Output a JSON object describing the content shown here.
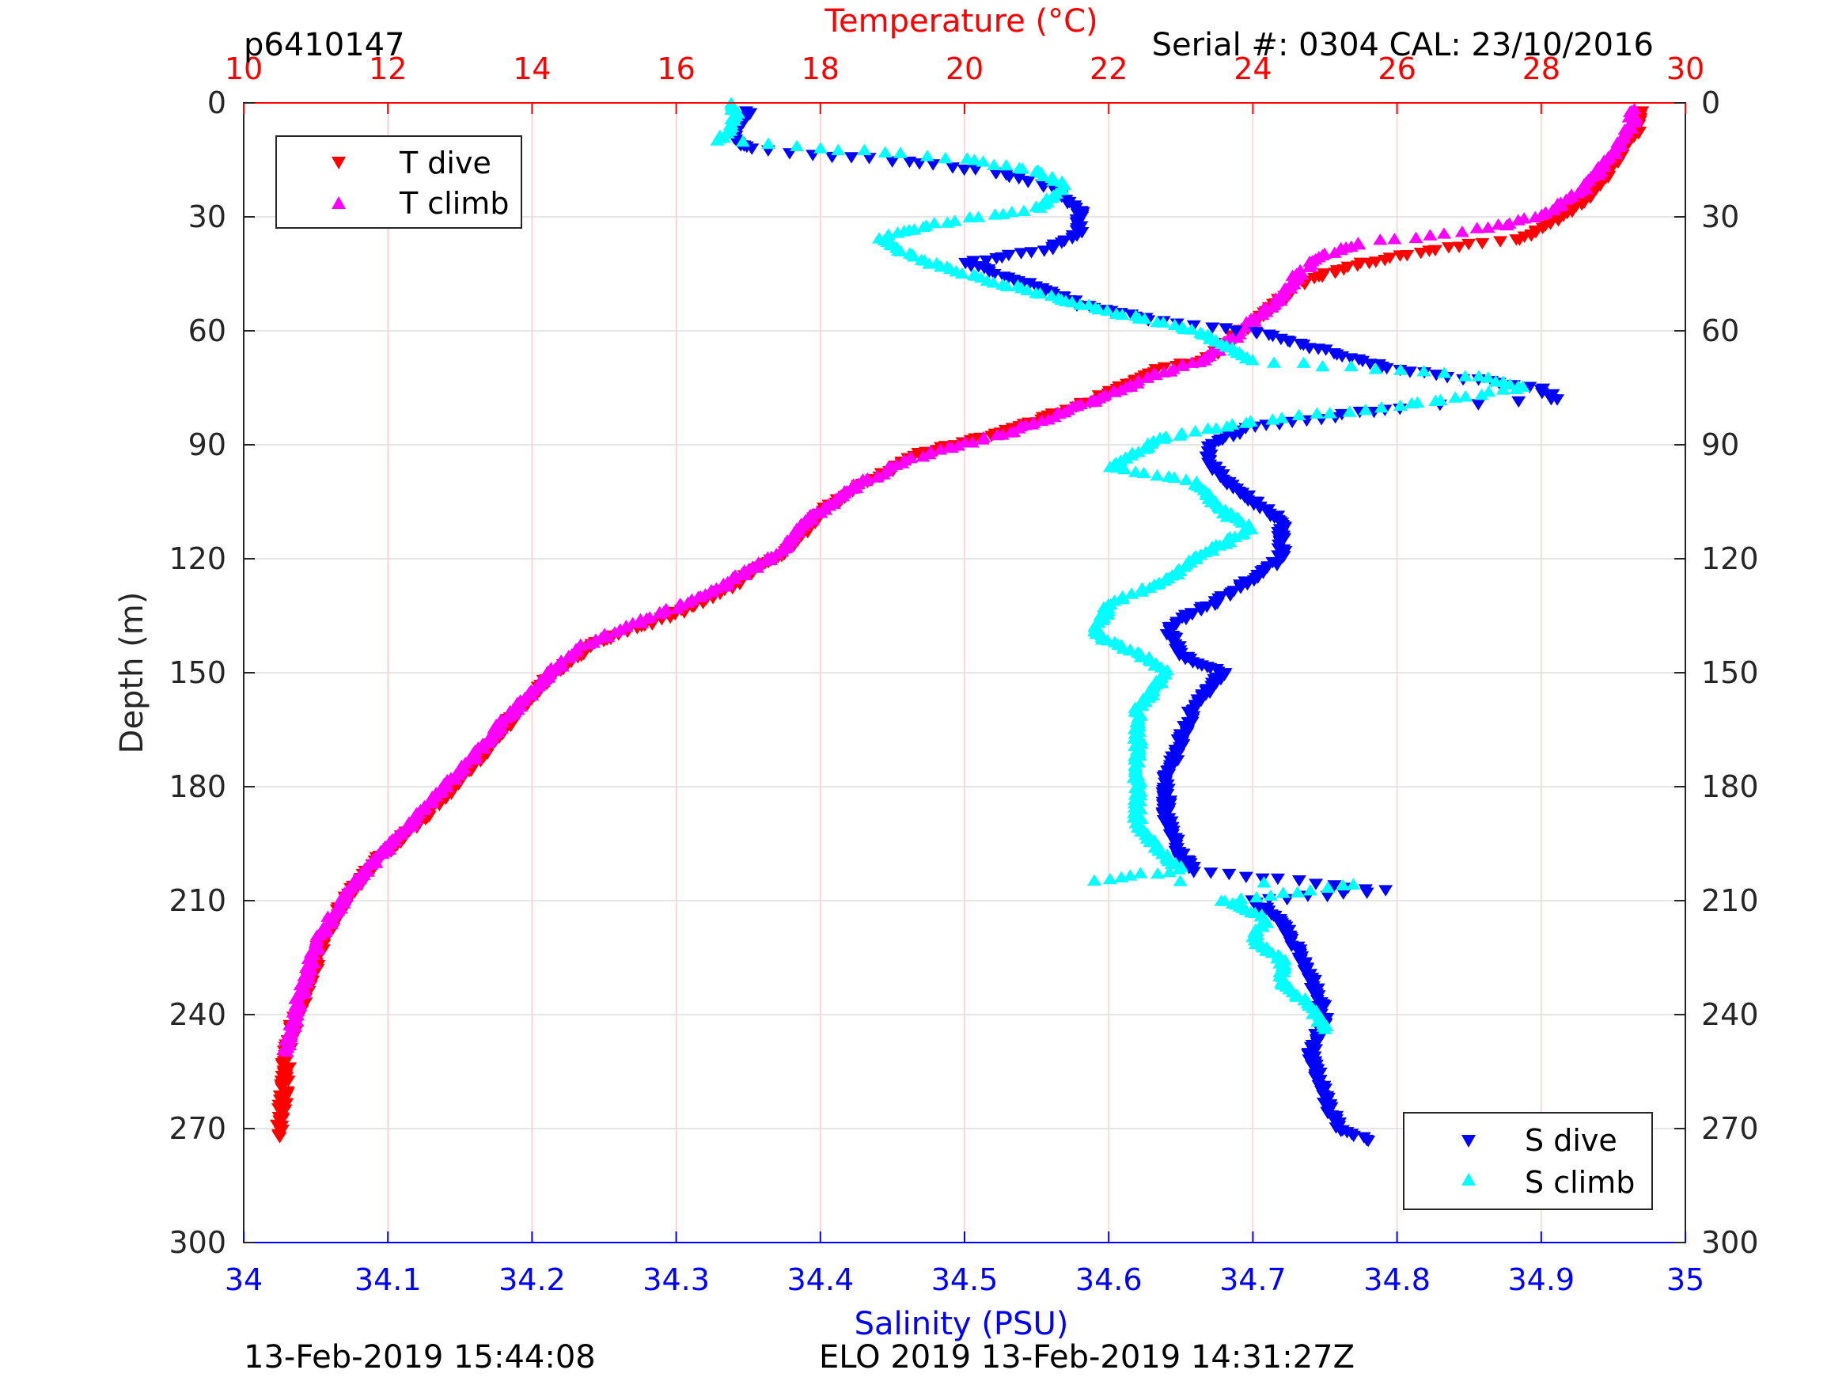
{
  "chart_data": {
    "type": "scatter",
    "header": {
      "profile_id": "p6410147",
      "serial": "Serial #: 0304  CAL: 23/10/2016"
    },
    "footer": {
      "left": "13-Feb-2019 15:44:08",
      "center": "ELO 2019 13-Feb-2019 14:31:27Z"
    },
    "ylabel": "Depth (m)",
    "ylim": [
      0,
      300
    ],
    "y_reversed": true,
    "yticks": [
      "0",
      "30",
      "60",
      "90",
      "120",
      "150",
      "180",
      "210",
      "240",
      "270",
      "300"
    ],
    "top_axis": {
      "label": "Temperature (°C)",
      "range": [
        10,
        30
      ],
      "ticks": [
        "10",
        "12",
        "14",
        "16",
        "18",
        "20",
        "22",
        "24",
        "26",
        "28",
        "30"
      ],
      "color": "#ff0000"
    },
    "bottom_axis": {
      "label": "Salinity (PSU)",
      "range": [
        34,
        35
      ],
      "ticks": [
        "34",
        "34.1",
        "34.2",
        "34.3",
        "34.4",
        "34.5",
        "34.6",
        "34.7",
        "34.8",
        "34.9",
        "35"
      ],
      "color": "#0000ff"
    },
    "grid": {
      "vertical": true,
      "horizontal": true,
      "vertical_color": "#ffcccc",
      "horizontal_color": "#dddddd"
    },
    "legends": {
      "temperature": {
        "position": "top-left",
        "entries": [
          "T dive",
          "T climb"
        ]
      },
      "salinity": {
        "position": "bottom-right",
        "entries": [
          "S dive",
          "S climb"
        ]
      }
    },
    "series": [
      {
        "name": "T dive",
        "axis": "temperature",
        "marker": "triangle-down",
        "color": "#ff0000",
        "points": [
          [
            29.4,
            2
          ],
          [
            29.3,
            8
          ],
          [
            29.0,
            16
          ],
          [
            28.7,
            24
          ],
          [
            28.3,
            30
          ],
          [
            27.7,
            36
          ],
          [
            27.0,
            37
          ],
          [
            26.0,
            40
          ],
          [
            25.3,
            43
          ],
          [
            24.7,
            47
          ],
          [
            24.3,
            53
          ],
          [
            24.0,
            58
          ],
          [
            23.7,
            62
          ],
          [
            23.4,
            67
          ],
          [
            22.7,
            70
          ],
          [
            21.8,
            78
          ],
          [
            20.8,
            85
          ],
          [
            19.4,
            92
          ],
          [
            18.6,
            100
          ],
          [
            18.0,
            108
          ],
          [
            17.5,
            118
          ],
          [
            16.7,
            128
          ],
          [
            15.9,
            135
          ],
          [
            14.9,
            142
          ],
          [
            14.3,
            150
          ],
          [
            13.8,
            160
          ],
          [
            13.4,
            170
          ],
          [
            12.9,
            180
          ],
          [
            12.4,
            190
          ],
          [
            11.8,
            200
          ],
          [
            11.4,
            210
          ],
          [
            11.1,
            220
          ],
          [
            10.9,
            232
          ],
          [
            10.7,
            242
          ],
          [
            10.6,
            250
          ],
          [
            10.55,
            262
          ],
          [
            10.5,
            270
          ],
          [
            10.5,
            272
          ]
        ]
      },
      {
        "name": "T climb",
        "axis": "temperature",
        "marker": "triangle-up",
        "color": "#ff00ff",
        "points": [
          [
            29.3,
            2
          ],
          [
            29.2,
            8
          ],
          [
            28.9,
            16
          ],
          [
            28.5,
            24
          ],
          [
            28.0,
            30
          ],
          [
            27.3,
            33
          ],
          [
            26.5,
            35
          ],
          [
            25.5,
            37
          ],
          [
            24.9,
            41
          ],
          [
            24.6,
            46
          ],
          [
            24.3,
            53
          ],
          [
            23.9,
            59
          ],
          [
            23.6,
            64
          ],
          [
            23.3,
            68
          ],
          [
            22.6,
            72
          ],
          [
            21.6,
            80
          ],
          [
            20.6,
            87
          ],
          [
            19.2,
            94
          ],
          [
            18.5,
            101
          ],
          [
            17.9,
            109
          ],
          [
            17.4,
            119
          ],
          [
            16.5,
            129
          ],
          [
            15.6,
            136
          ],
          [
            14.7,
            143
          ],
          [
            14.2,
            151
          ],
          [
            13.7,
            161
          ],
          [
            13.2,
            172
          ],
          [
            12.7,
            182
          ],
          [
            12.2,
            192
          ],
          [
            11.7,
            202
          ],
          [
            11.3,
            212
          ],
          [
            11.0,
            222
          ],
          [
            10.8,
            234
          ],
          [
            10.65,
            245
          ],
          [
            10.6,
            250
          ]
        ]
      },
      {
        "name": "S dive",
        "axis": "salinity",
        "marker": "triangle-down",
        "color": "#0000ff",
        "points": [
          [
            34.35,
            2
          ],
          [
            34.34,
            8
          ],
          [
            34.35,
            12
          ],
          [
            34.45,
            15
          ],
          [
            34.52,
            18
          ],
          [
            34.56,
            22
          ],
          [
            34.58,
            28
          ],
          [
            34.58,
            34
          ],
          [
            34.56,
            38
          ],
          [
            34.5,
            42
          ],
          [
            34.55,
            48
          ],
          [
            34.58,
            53
          ],
          [
            34.63,
            57
          ],
          [
            34.7,
            60
          ],
          [
            34.75,
            65
          ],
          [
            34.8,
            70
          ],
          [
            34.9,
            75
          ],
          [
            34.91,
            78
          ],
          [
            34.8,
            80
          ],
          [
            34.7,
            85
          ],
          [
            34.67,
            90
          ],
          [
            34.67,
            95
          ],
          [
            34.69,
            102
          ],
          [
            34.72,
            110
          ],
          [
            34.72,
            120
          ],
          [
            34.68,
            130
          ],
          [
            34.64,
            138
          ],
          [
            34.65,
            145
          ],
          [
            34.68,
            150
          ],
          [
            34.66,
            158
          ],
          [
            34.65,
            168
          ],
          [
            34.64,
            178
          ],
          [
            34.64,
            188
          ],
          [
            34.65,
            198
          ],
          [
            34.66,
            202
          ],
          [
            34.79,
            207
          ],
          [
            34.7,
            210
          ],
          [
            34.72,
            215
          ],
          [
            34.73,
            222
          ],
          [
            34.74,
            230
          ],
          [
            34.75,
            240
          ],
          [
            34.74,
            250
          ],
          [
            34.75,
            262
          ],
          [
            34.76,
            270
          ],
          [
            34.78,
            273
          ]
        ]
      },
      {
        "name": "S climb",
        "axis": "salinity",
        "marker": "triangle-up",
        "color": "#00ffff",
        "points": [
          [
            34.34,
            0
          ],
          [
            34.34,
            5
          ],
          [
            34.33,
            10
          ],
          [
            34.4,
            12
          ],
          [
            34.5,
            15
          ],
          [
            34.55,
            18
          ],
          [
            34.57,
            22
          ],
          [
            34.55,
            28
          ],
          [
            34.48,
            32
          ],
          [
            34.44,
            36
          ],
          [
            34.46,
            40
          ],
          [
            34.5,
            45
          ],
          [
            34.55,
            50
          ],
          [
            34.6,
            55
          ],
          [
            34.66,
            60
          ],
          [
            34.7,
            68
          ],
          [
            34.85,
            72
          ],
          [
            34.89,
            75
          ],
          [
            34.8,
            80
          ],
          [
            34.7,
            84
          ],
          [
            34.64,
            88
          ],
          [
            34.62,
            92
          ],
          [
            34.6,
            96
          ],
          [
            34.66,
            100
          ],
          [
            34.68,
            108
          ],
          [
            34.7,
            112
          ],
          [
            34.66,
            120
          ],
          [
            34.64,
            126
          ],
          [
            34.6,
            132
          ],
          [
            34.59,
            140
          ],
          [
            34.62,
            145
          ],
          [
            34.64,
            150
          ],
          [
            34.62,
            160
          ],
          [
            34.62,
            170
          ],
          [
            34.62,
            180
          ],
          [
            34.62,
            190
          ],
          [
            34.63,
            195
          ],
          [
            34.65,
            202
          ],
          [
            34.59,
            205
          ],
          [
            34.77,
            206
          ],
          [
            34.68,
            210
          ],
          [
            34.71,
            215
          ],
          [
            34.7,
            220
          ],
          [
            34.72,
            226
          ],
          [
            34.72,
            232
          ],
          [
            34.74,
            238
          ],
          [
            34.75,
            244
          ]
        ]
      }
    ]
  }
}
